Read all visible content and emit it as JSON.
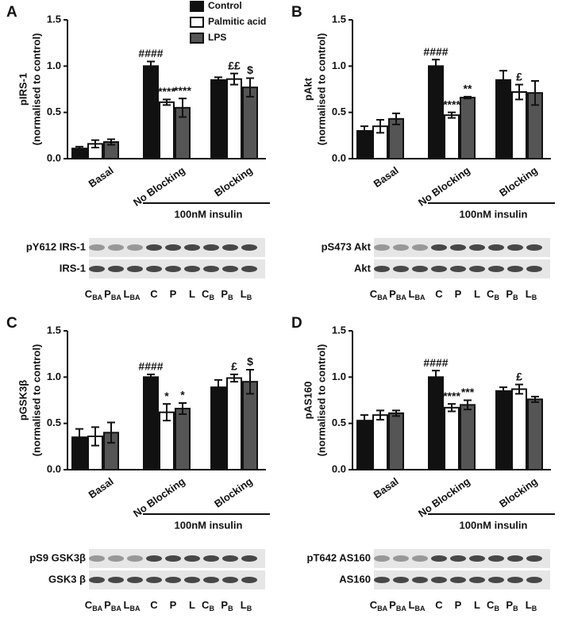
{
  "chart_data": [
    {
      "type": "bar",
      "label": "A",
      "ylabel": [
        "pIRS-1",
        "(normalised to control)"
      ],
      "categories": [
        "Basal",
        "No Blocking",
        "Blocking"
      ],
      "legend": true,
      "series": [
        {
          "name": "Control",
          "color": "#111111",
          "values": [
            0.11,
            1.0,
            0.85
          ],
          "errors": [
            0.02,
            0.05,
            0.03
          ]
        },
        {
          "name": "Palmitic acid",
          "color": "#ffffff",
          "values": [
            0.16,
            0.61,
            0.86
          ],
          "errors": [
            0.04,
            0.03,
            0.06
          ]
        },
        {
          "name": "LPS",
          "color": "#555555",
          "values": [
            0.18,
            0.55,
            0.77
          ],
          "errors": [
            0.03,
            0.1,
            0.1
          ]
        }
      ],
      "ylim": [
        0,
        1.5
      ],
      "yticks": [
        {
          "value": 0,
          "label": "0.0"
        },
        0.5,
        {
          "value": 1,
          "label": "1.0"
        },
        1.5
      ],
      "annotations": [
        {
          "text": "####",
          "series": 0,
          "category": 1
        },
        {
          "text": "****",
          "series": 1,
          "category": 1
        },
        {
          "text": "****",
          "series": 2,
          "category": 1
        },
        {
          "text": "££",
          "series": 1,
          "category": 2
        },
        {
          "text": "$",
          "series": 2,
          "category": 2
        }
      ],
      "bracket": "100nM insulin",
      "blot": {
        "rows": [
          "pY612 IRS-1",
          "IRS-1"
        ],
        "lanes": [
          {
            "label": "C",
            "sub": "BA"
          },
          {
            "label": "P",
            "sub": "BA"
          },
          {
            "label": "L",
            "sub": "BA"
          },
          {
            "label": "C"
          },
          {
            "label": "P"
          },
          {
            "label": "L"
          },
          {
            "label": "C",
            "sub": "B"
          },
          {
            "label": "P",
            "sub": "B"
          },
          {
            "label": "L",
            "sub": "B"
          }
        ]
      }
    },
    {
      "type": "bar",
      "label": "B",
      "ylabel": [
        "pAkt",
        "(normalised to control)"
      ],
      "categories": [
        "Basal",
        "No Blocking",
        "Blocking"
      ],
      "legend": false,
      "series": [
        {
          "color": "#111111",
          "values": [
            0.3,
            1.0,
            0.85
          ],
          "errors": [
            0.05,
            0.07,
            0.1
          ]
        },
        {
          "color": "#ffffff",
          "values": [
            0.35,
            0.47,
            0.72
          ],
          "errors": [
            0.07,
            0.03,
            0.08
          ]
        },
        {
          "color": "#555555",
          "values": [
            0.43,
            0.66,
            0.71
          ],
          "errors": [
            0.06,
            0.01,
            0.13
          ]
        }
      ],
      "ylim": [
        0,
        1.5
      ],
      "yticks": [
        {
          "value": 0,
          "label": "0.0"
        },
        0.5,
        {
          "value": 1,
          "label": "1.0"
        },
        1.5
      ],
      "annotations": [
        {
          "text": "####",
          "series": 0,
          "category": 1
        },
        {
          "text": "****",
          "series": 1,
          "category": 1
        },
        {
          "text": "**",
          "series": 2,
          "category": 1
        },
        {
          "text": "£",
          "series": 1,
          "category": 2
        }
      ],
      "bracket": "100nM insulin",
      "blot": {
        "rows": [
          "pS473 Akt",
          "Akt"
        ],
        "lanes": [
          {
            "label": "C",
            "sub": "BA"
          },
          {
            "label": "P",
            "sub": "BA"
          },
          {
            "label": "L",
            "sub": "BA"
          },
          {
            "label": "C"
          },
          {
            "label": "P"
          },
          {
            "label": "L"
          },
          {
            "label": "C",
            "sub": "B"
          },
          {
            "label": "P",
            "sub": "B"
          },
          {
            "label": "L",
            "sub": "B"
          }
        ]
      }
    },
    {
      "type": "bar",
      "label": "C",
      "ylabel": [
        "pGSK3β",
        "(normalised to control)"
      ],
      "categories": [
        "Basal",
        "No Blocking",
        "Blocking"
      ],
      "legend": false,
      "series": [
        {
          "color": "#111111",
          "values": [
            0.35,
            1.0,
            0.89
          ],
          "errors": [
            0.09,
            0.03,
            0.08
          ]
        },
        {
          "color": "#ffffff",
          "values": [
            0.36,
            0.62,
            0.99
          ],
          "errors": [
            0.1,
            0.09,
            0.04
          ]
        },
        {
          "color": "#555555",
          "values": [
            0.4,
            0.66,
            0.95
          ],
          "errors": [
            0.11,
            0.06,
            0.13
          ]
        }
      ],
      "ylim": [
        0,
        1.5
      ],
      "yticks": [
        {
          "value": 0,
          "label": "0.0"
        },
        0.5,
        {
          "value": 1,
          "label": "1.0"
        },
        1.5
      ],
      "annotations": [
        {
          "text": "####",
          "series": 0,
          "category": 1
        },
        {
          "text": "*",
          "series": 1,
          "category": 1
        },
        {
          "text": "*",
          "series": 2,
          "category": 1
        },
        {
          "text": "£",
          "series": 1,
          "category": 2
        },
        {
          "text": "$",
          "series": 2,
          "category": 2
        }
      ],
      "bracket": "100nM insulin",
      "blot": {
        "rows": [
          "pS9 GSK3β",
          "GSK3 β"
        ],
        "lanes": [
          {
            "label": "C",
            "sub": "BA"
          },
          {
            "label": "P",
            "sub": "BA"
          },
          {
            "label": "L",
            "sub": "BA"
          },
          {
            "label": "C"
          },
          {
            "label": "P"
          },
          {
            "label": "L"
          },
          {
            "label": "C",
            "sub": "B"
          },
          {
            "label": "P",
            "sub": "B"
          },
          {
            "label": "L",
            "sub": "B"
          }
        ]
      }
    },
    {
      "type": "bar",
      "label": "D",
      "ylabel": [
        "pAS160",
        "(normalised to control)"
      ],
      "categories": [
        "Basal",
        "No Blocking",
        "Blocking"
      ],
      "legend": false,
      "series": [
        {
          "color": "#111111",
          "values": [
            0.53,
            1.0,
            0.85
          ],
          "errors": [
            0.06,
            0.07,
            0.04
          ]
        },
        {
          "color": "#ffffff",
          "values": [
            0.59,
            0.67,
            0.87
          ],
          "errors": [
            0.05,
            0.04,
            0.05
          ]
        },
        {
          "color": "#555555",
          "values": [
            0.61,
            0.7,
            0.76
          ],
          "errors": [
            0.03,
            0.05,
            0.03
          ]
        }
      ],
      "ylim": [
        0,
        1.5
      ],
      "yticks": [
        {
          "value": 0,
          "label": "0.0"
        },
        0.5,
        {
          "value": 1,
          "label": "1.0"
        },
        1.5
      ],
      "annotations": [
        {
          "text": "####",
          "series": 0,
          "category": 1
        },
        {
          "text": "****",
          "series": 1,
          "category": 1
        },
        {
          "text": "***",
          "series": 2,
          "category": 1
        },
        {
          "text": "£",
          "series": 1,
          "category": 2
        }
      ],
      "bracket": "100nM insulin",
      "blot": {
        "rows": [
          "pT642 AS160",
          "AS160"
        ],
        "lanes": [
          {
            "label": "C",
            "sub": "BA"
          },
          {
            "label": "P",
            "sub": "BA"
          },
          {
            "label": "L",
            "sub": "BA"
          },
          {
            "label": "C"
          },
          {
            "label": "P"
          },
          {
            "label": "L"
          },
          {
            "label": "C",
            "sub": "B"
          },
          {
            "label": "P",
            "sub": "B"
          },
          {
            "label": "L",
            "sub": "B"
          }
        ]
      }
    }
  ]
}
